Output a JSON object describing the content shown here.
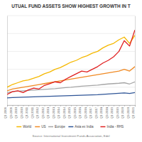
{
  "chart_data": {
    "type": "line",
    "title": "UTUAL FUND ASSETS SHOW HIGHEST GROWTH IN T",
    "source": "Source: International Investment Funds Association, Edel",
    "categories": [
      "Q1 2009",
      "Q3 2009",
      "Q1 2010",
      "Q3 2010",
      "Q1 2011",
      "Q3 2011",
      "Q1 2012",
      "Q3 2012",
      "Q1 2013",
      "Q3 2013",
      "Q1 2014",
      "Q3 2014",
      "Q1 2015",
      "Q3 2015",
      "Q1 2016",
      "Q3 2016",
      "Q1 2017",
      "Q3 2017",
      "Q1 2018",
      "Q3 2018",
      "Q1 2019",
      "Q3 2019",
      "Q1 2020",
      "Q3 2020",
      "Q1 2021"
    ],
    "series": [
      {
        "name": "World",
        "color": "#f5b800",
        "values": [
          100,
          115,
          125,
          135,
          140,
          150,
          160,
          175,
          185,
          200,
          210,
          225,
          240,
          250,
          265,
          275,
          290,
          300,
          320,
          335,
          345,
          365,
          380,
          345,
          390
        ]
      },
      {
        "name": "US",
        "color": "#f08a24",
        "values": [
          80,
          90,
          95,
          100,
          105,
          110,
          115,
          120,
          125,
          130,
          135,
          140,
          145,
          150,
          155,
          160,
          165,
          170,
          175,
          180,
          185,
          190,
          200,
          190,
          215
        ]
      },
      {
        "name": "Europe",
        "color": "#a6a6a6",
        "values": [
          70,
          75,
          78,
          80,
          82,
          84,
          86,
          88,
          90,
          92,
          95,
          98,
          100,
          103,
          106,
          108,
          110,
          112,
          115,
          118,
          120,
          122,
          125,
          118,
          130
        ]
      },
      {
        "name": "Asia ex India",
        "color": "#2f5597",
        "values": [
          40,
          42,
          43,
          44,
          45,
          46,
          47,
          48,
          49,
          50,
          51,
          52,
          53,
          54,
          55,
          56,
          57,
          58,
          60,
          62,
          64,
          66,
          68,
          65,
          70
        ]
      },
      {
        "name": "India - RHS",
        "color": "#e02020",
        "axis": "y2",
        "values": [
          60,
          75,
          80,
          70,
          85,
          95,
          90,
          110,
          120,
          130,
          125,
          145,
          160,
          175,
          190,
          185,
          200,
          215,
          235,
          250,
          270,
          300,
          360,
          330,
          420
        ]
      }
    ],
    "ylim": [
      0,
      500
    ],
    "yticks": [
      0,
      100,
      200,
      300,
      400,
      500
    ],
    "y2lim": [
      0,
      500
    ],
    "y2ticks": [
      0,
      100,
      200,
      300,
      400,
      500
    ],
    "grid": true,
    "tick_labels": "x",
    "legend": "bottom"
  }
}
